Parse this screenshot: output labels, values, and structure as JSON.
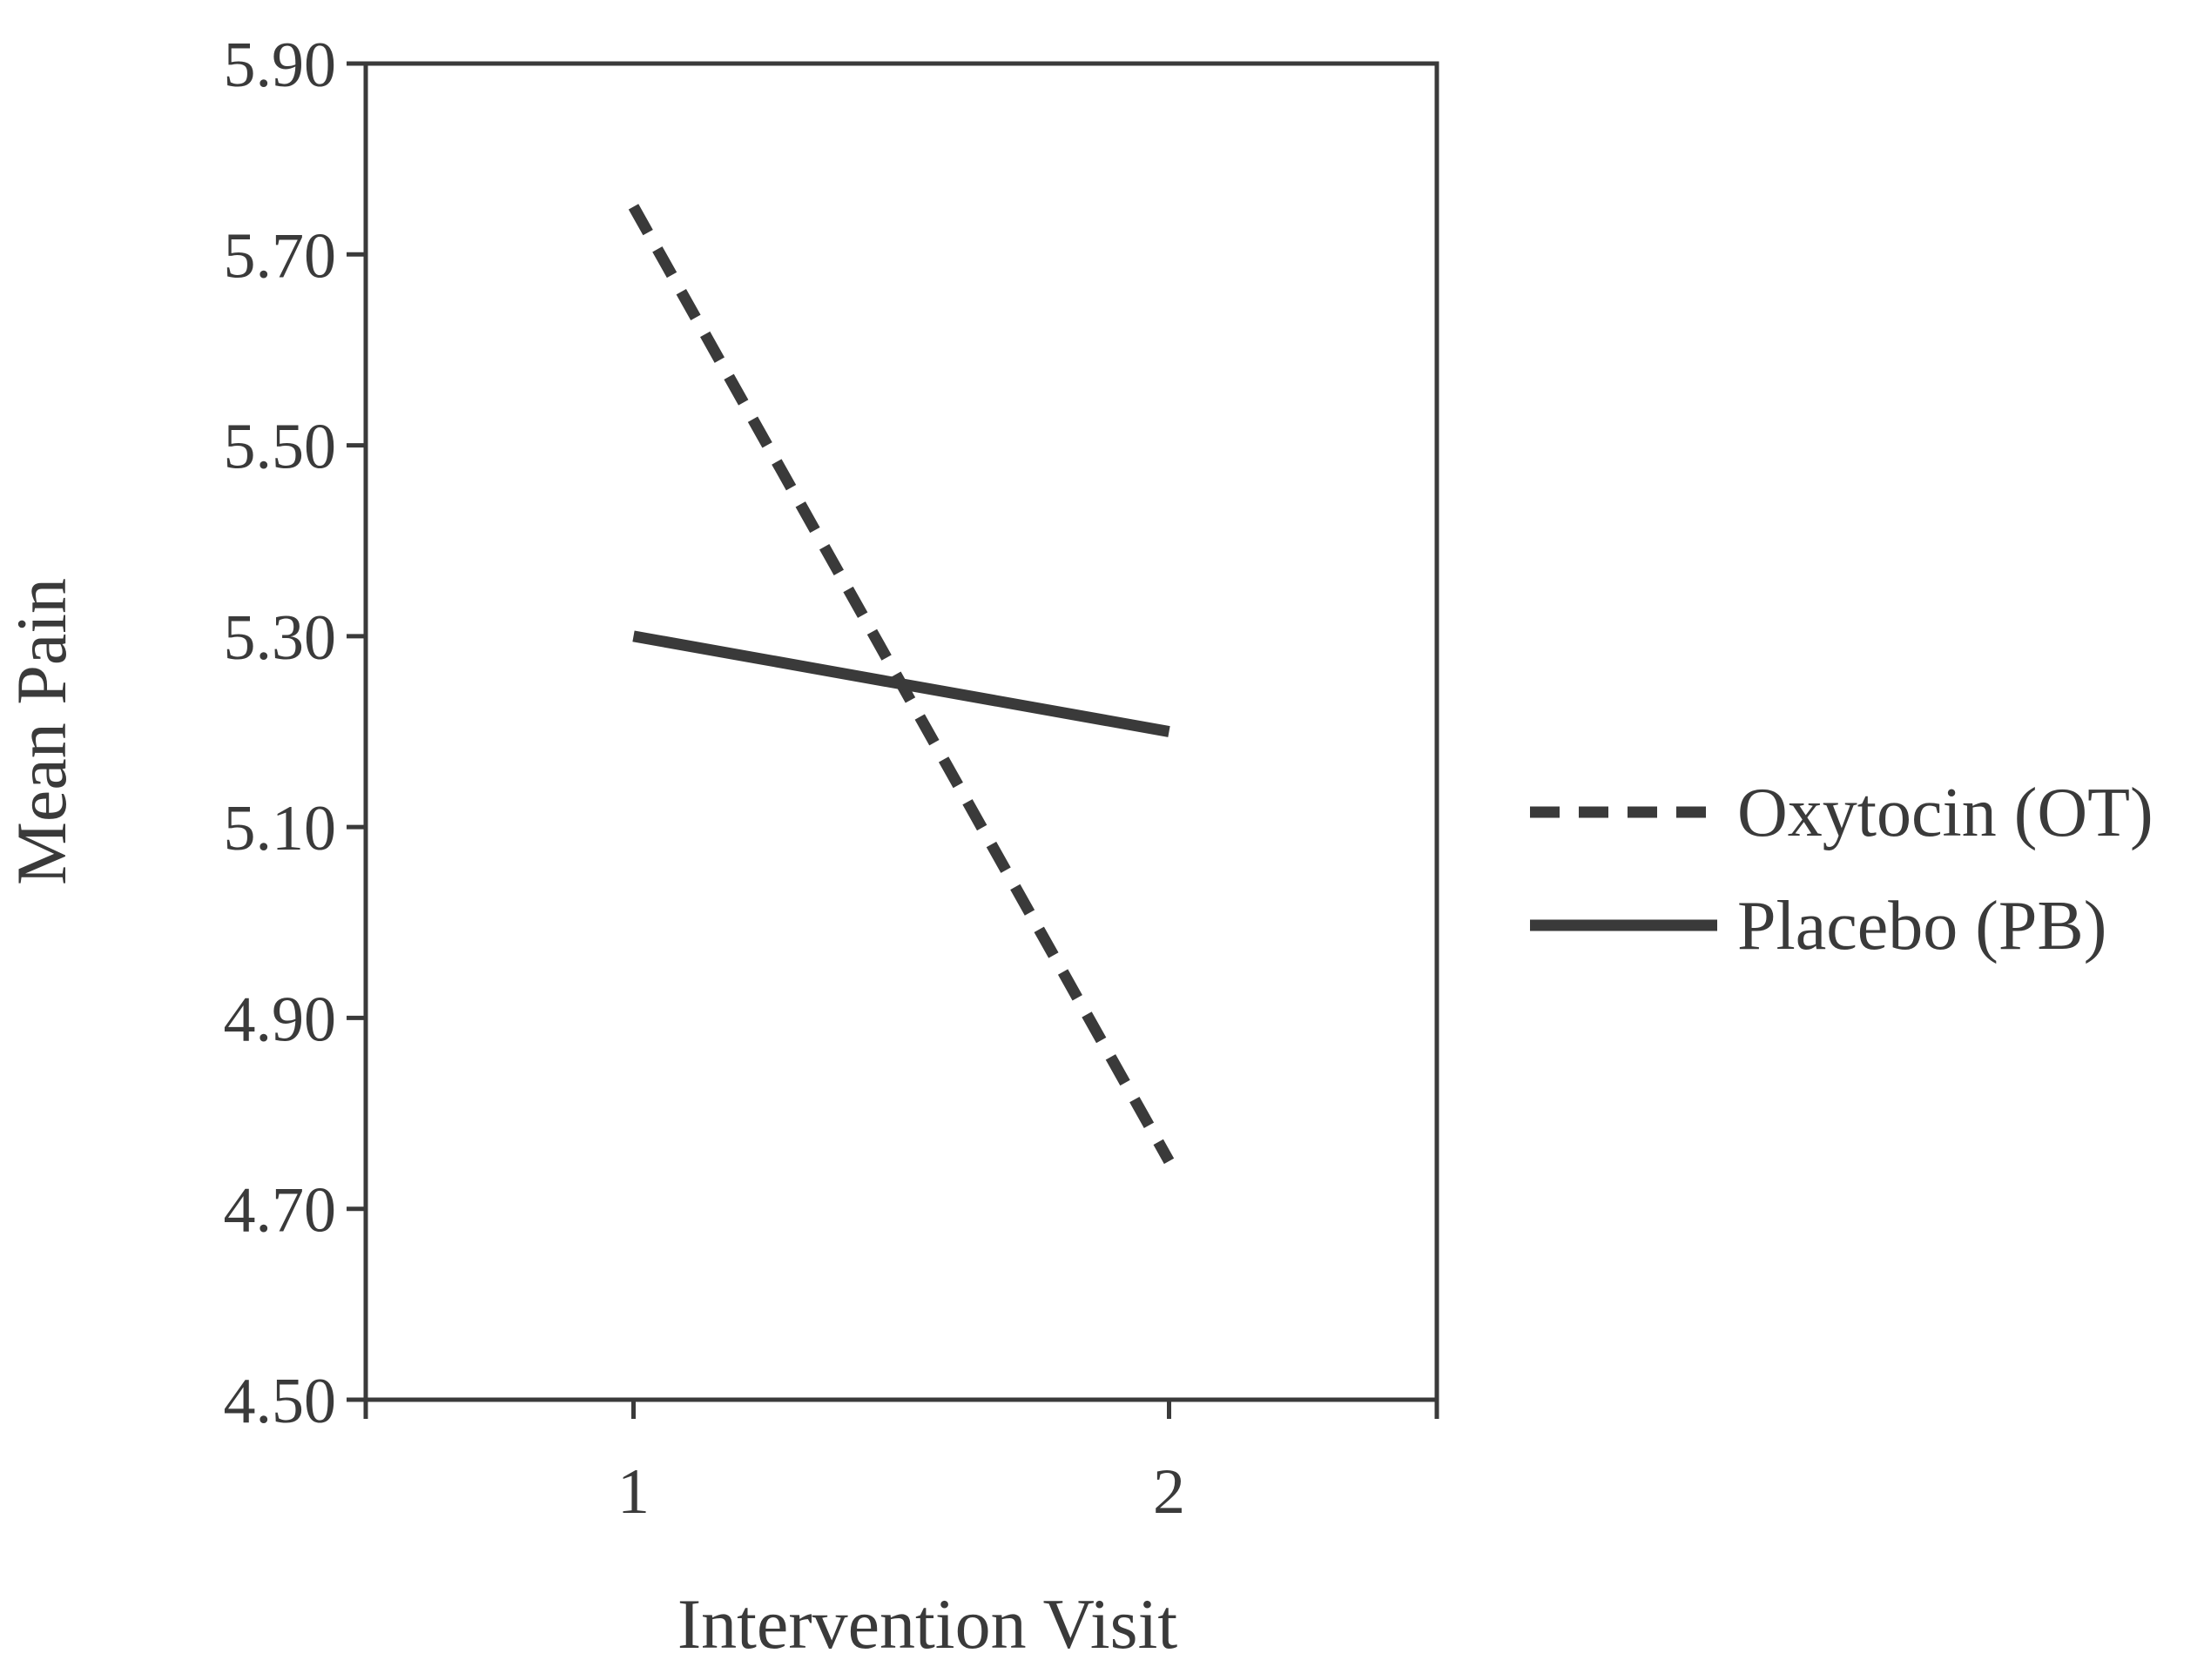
{
  "chart_data": {
    "type": "line",
    "title": "",
    "xlabel": "Intervention Visit",
    "ylabel": "Mean Pain",
    "x": [
      1,
      2
    ],
    "x_tick_labels": [
      "1",
      "2"
    ],
    "xlim": [
      0.5,
      2.5
    ],
    "ylim": [
      4.5,
      5.9
    ],
    "y_ticks": [
      4.5,
      4.7,
      4.9,
      5.1,
      5.3,
      5.5,
      5.7,
      5.9
    ],
    "y_tick_labels": [
      "4.50",
      "4.70",
      "4.90",
      "5.10",
      "5.30",
      "5.50",
      "5.70",
      "5.90"
    ],
    "grid": false,
    "legend_position": "right",
    "series": [
      {
        "name": "Oxytocin (OT)",
        "values": [
          5.75,
          4.75
        ],
        "line_style": "dashed",
        "color": "#3a3a3a"
      },
      {
        "name": "Placebo (PB)",
        "values": [
          5.3,
          5.2
        ],
        "line_style": "solid",
        "color": "#3a3a3a"
      }
    ]
  }
}
